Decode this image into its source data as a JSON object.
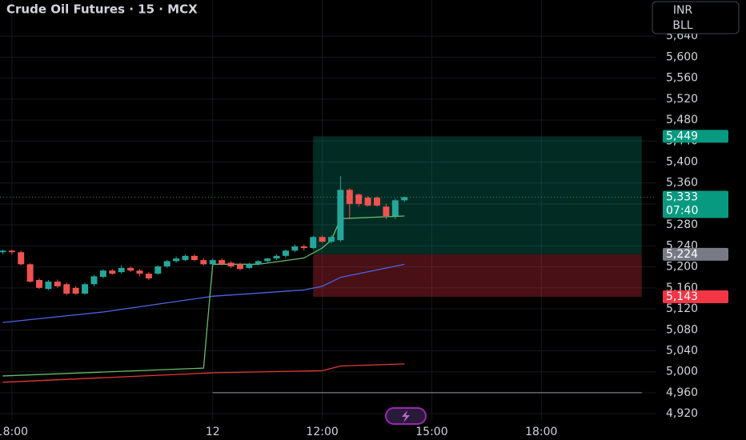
{
  "chart_data": {
    "type": "candlestick",
    "title": "Crude Oil Futures · 15 · MCX",
    "currency": "INR",
    "unit": "BLL",
    "x": [
      -23,
      -22,
      -21,
      -20,
      -19,
      -18,
      -17,
      -16,
      -15,
      -14,
      -13,
      -12,
      -11,
      -10,
      -9,
      -8,
      -7,
      -6,
      -5,
      -4,
      -3,
      -2,
      -1,
      0,
      1,
      2,
      3,
      4,
      5,
      6,
      7,
      8,
      9,
      10,
      11,
      12,
      13,
      14,
      15,
      16,
      17,
      18,
      19,
      20,
      21
    ],
    "open": [
      5228,
      5231,
      5228,
      5205,
      5175,
      5158,
      5172,
      5167,
      5160,
      5149,
      5167,
      5181,
      5193,
      5190,
      5198,
      5193,
      5187,
      5187,
      5201,
      5211,
      5213,
      5221,
      5213,
      5205,
      5213,
      5208,
      5205,
      5198,
      5205,
      5211,
      5216,
      5221,
      5231,
      5239,
      5236,
      5257,
      5248,
      5251,
      5347,
      5338,
      5332,
      5332,
      5315,
      5297,
      5327
    ],
    "high": [
      5233,
      5233,
      5231,
      5207,
      5178,
      5175,
      5176,
      5170,
      5163,
      5170,
      5185,
      5196,
      5196,
      5203,
      5201,
      5196,
      5190,
      5203,
      5213,
      5220,
      5224,
      5224,
      5217,
      5216,
      5216,
      5211,
      5208,
      5208,
      5213,
      5217,
      5224,
      5233,
      5243,
      5243,
      5259,
      5260,
      5260,
      5373,
      5350,
      5340,
      5335,
      5335,
      5320,
      5330,
      5334
    ],
    "low": [
      5224,
      5224,
      5203,
      5170,
      5158,
      5156,
      5160,
      5146,
      5147,
      5147,
      5163,
      5178,
      5185,
      5187,
      5190,
      5182,
      5175,
      5185,
      5198,
      5208,
      5211,
      5211,
      5203,
      5203,
      5203,
      5198,
      5193,
      5196,
      5203,
      5208,
      5213,
      5217,
      5228,
      5231,
      5234,
      5246,
      5245,
      5248,
      5291,
      5315,
      5315,
      5315,
      5291,
      5291,
      5324
    ],
    "close": [
      5231,
      5228,
      5205,
      5172,
      5160,
      5172,
      5163,
      5149,
      5149,
      5167,
      5182,
      5193,
      5187,
      5198,
      5193,
      5187,
      5178,
      5201,
      5211,
      5216,
      5221,
      5213,
      5205,
      5213,
      5205,
      5201,
      5196,
      5205,
      5211,
      5216,
      5221,
      5231,
      5239,
      5236,
      5257,
      5248,
      5257,
      5347,
      5320,
      5320,
      5317,
      5317,
      5297,
      5327,
      5333
    ],
    "up_color": "#26a69a",
    "down_color": "#ef5350",
    "series": [
      {
        "color": "#4a63e6",
        "x": [
          -23,
          -12,
          0,
          10,
          12,
          14,
          21
        ],
        "values": [
          5094,
          5114,
          5144,
          5156,
          5163,
          5180,
          5205
        ]
      },
      {
        "color": "#66bb6a",
        "x": [
          -23,
          -1,
          0,
          5,
          10,
          12,
          13,
          14,
          21
        ],
        "values": [
          4992,
          5007,
          5205,
          5205,
          5217,
          5236,
          5251,
          5292,
          5297
        ]
      },
      {
        "color": "#e53935",
        "x": [
          -23,
          0,
          12,
          14,
          21
        ],
        "values": [
          4980,
          4998,
          5002,
          5011,
          5015
        ]
      }
    ],
    "position": {
      "x": [
        11,
        47
      ],
      "target": 5449,
      "entry": 5224,
      "stop": 5143
    },
    "level": {
      "x": [
        0,
        47
      ],
      "value": 4960
    },
    "price_labels": [
      {
        "value": 5449,
        "label": "5,449",
        "color": "#089981"
      },
      {
        "value": 5333,
        "label": "5,333",
        "color": "#089981",
        "countdown": "07:40"
      },
      {
        "value": 5224,
        "label": "5,224",
        "color": "#787b86"
      },
      {
        "value": 5143,
        "label": "5,143",
        "color": "#f23645"
      }
    ],
    "xlim": [
      -23.3,
      48.6
    ],
    "ylim": [
      4908,
      5709
    ],
    "xticks": [
      {
        "value": -22,
        "label": "18:00"
      },
      {
        "value": 0,
        "label": "12"
      },
      {
        "value": 12,
        "label": "12:00"
      },
      {
        "value": 24,
        "label": "15:00"
      },
      {
        "value": 36,
        "label": "18:00"
      }
    ],
    "yticks": [
      {
        "value": 4920,
        "label": "4,920"
      },
      {
        "value": 4960,
        "label": "4,960"
      },
      {
        "value": 5000,
        "label": "5,000"
      },
      {
        "value": 5040,
        "label": "5,040"
      },
      {
        "value": 5080,
        "label": "5,080"
      },
      {
        "value": 5120,
        "label": "5,120"
      },
      {
        "value": 5160,
        "label": "5,160"
      },
      {
        "value": 5200,
        "label": "5,200"
      },
      {
        "value": 5240,
        "label": "5,240"
      },
      {
        "value": 5280,
        "label": "5,280"
      },
      {
        "value": 5320,
        "label": "5,320"
      },
      {
        "value": 5360,
        "label": "5,360"
      },
      {
        "value": 5400,
        "label": "5,400"
      },
      {
        "value": 5440,
        "label": "5,440"
      },
      {
        "value": 5480,
        "label": "5,480"
      },
      {
        "value": 5520,
        "label": "5,520"
      },
      {
        "value": 5560,
        "label": "5,560"
      },
      {
        "value": 5600,
        "label": "5,600"
      },
      {
        "value": 5640,
        "label": "5,640"
      }
    ],
    "grid": true
  }
}
